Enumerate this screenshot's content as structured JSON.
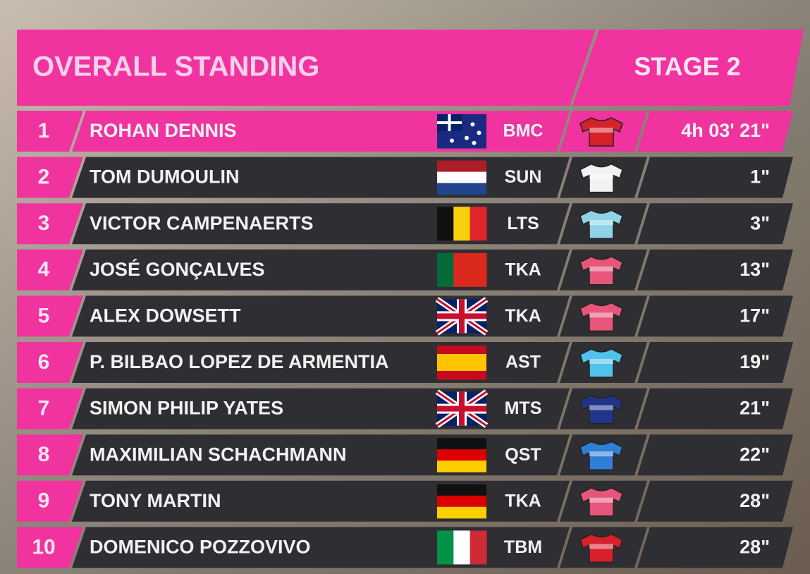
{
  "header": {
    "title": "OVERALL STANDING",
    "stage": "STAGE 2"
  },
  "table": {
    "rows": [
      {
        "rank": 1,
        "name": "ROHAN DENNIS",
        "team": "BMC",
        "time": "4h 03' 21\""
      },
      {
        "rank": 2,
        "name": "TOM DUMOULIN",
        "team": "SUN",
        "time": "1\""
      },
      {
        "rank": 3,
        "name": "VICTOR CAMPENAERTS",
        "team": "LTS",
        "time": "3\""
      },
      {
        "rank": 4,
        "name": "JOSÉ GONÇALVES",
        "team": "TKA",
        "time": "13\""
      },
      {
        "rank": 5,
        "name": "ALEX DOWSETT",
        "team": "TKA",
        "time": "17\""
      },
      {
        "rank": 6,
        "name": "P. BILBAO LOPEZ DE ARMENTIA",
        "team": "AST",
        "time": "19\""
      },
      {
        "rank": 7,
        "name": "SIMON PHILIP YATES",
        "team": "MTS",
        "time": "21\""
      },
      {
        "rank": 8,
        "name": "MAXIMILIAN SCHACHMANN",
        "team": "QST",
        "time": "22\""
      },
      {
        "rank": 9,
        "name": "TONY MARTIN",
        "team": "TKA",
        "time": "28\""
      },
      {
        "rank": 10,
        "name": "DOMENICO POZZOVIVO",
        "team": "TBM",
        "time": "28\""
      }
    ]
  }
}
